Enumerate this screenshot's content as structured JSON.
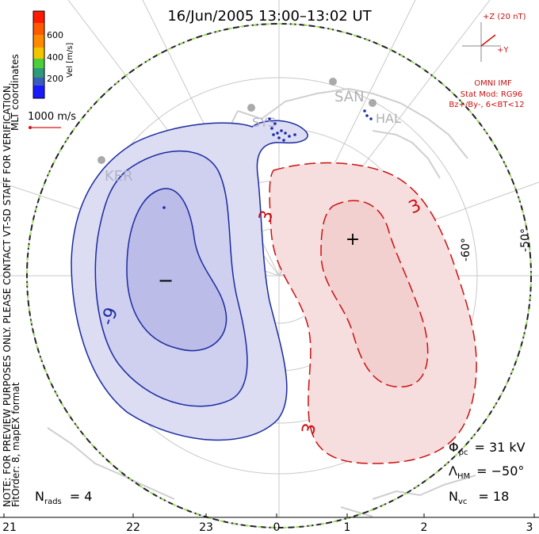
{
  "title": "16/Jun/2005 13:00–13:02 UT",
  "note": "NOTE: FOR PREVIEW PURPOSES ONLY. PLEASE CONTACT VT-SD STAFF FOR VERIFICATION.",
  "fit_info": "FitOrder: 8, mapEX format",
  "coordinates": "MLT coordinates",
  "colorbar": {
    "label": "Vel [m/s]",
    "ticks": [
      "600",
      "400",
      "200"
    ],
    "colors": [
      "#ff1a00",
      "#ff8a00",
      "#f4c400",
      "#4ccf3a",
      "#2e9a7a",
      "#3b5bbf",
      "#1a1aff"
    ]
  },
  "velocity_key": {
    "label": "1000 m/s",
    "color": "#e01010"
  },
  "imf": {
    "z_label": "+Z (20 nT)",
    "y_label": "+Y",
    "source": "OMNI IMF",
    "stat_mod": "Stat Mod: RG96",
    "bin": "Bz+/By-, 6<BT<12",
    "color": "#cc1010"
  },
  "lat_labels": [
    "-60°",
    "-50°"
  ],
  "radar_sites": [
    "KER",
    "SAN",
    "HAL",
    "SYS"
  ],
  "contours": {
    "negative_label": "-9",
    "positive_label_a": "3",
    "positive_label_b": "3",
    "positive_label_c": "3",
    "neg_color": "#1a2aa0",
    "pos_color": "#cc1010",
    "neg_fill": "#dcdcf2",
    "pos_fill": "#f7dede"
  },
  "markers": {
    "min": "−",
    "max": "+"
  },
  "stats": {
    "phi_pc_symbol": "Φ",
    "phi_pc_sub": "pc",
    "phi_pc_value": "= 31 kV",
    "lambda_symbol": "Λ",
    "lambda_sub": "HM",
    "lambda_value": "= −50°",
    "nvc_symbol": "N",
    "nvc_sub": "vc",
    "nvc_value": "= 18",
    "nrads_symbol": "N",
    "nrads_sub": "rads",
    "nrads_value": "= 4"
  },
  "mlt_ticks": [
    "21",
    "22",
    "23",
    "0",
    "1",
    "2",
    "3"
  ]
}
